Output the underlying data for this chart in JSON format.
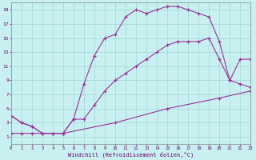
{
  "xlabel": "Windchill (Refroidissement éolien,°C)",
  "bg_color": "#c8f0f0",
  "grid_color": "#a8dada",
  "line_color": "#993399",
  "xlim": [
    0,
    23
  ],
  "ylim": [
    0,
    20
  ],
  "xticks": [
    0,
    1,
    2,
    3,
    4,
    5,
    6,
    7,
    8,
    9,
    10,
    11,
    12,
    13,
    14,
    15,
    16,
    17,
    18,
    19,
    20,
    21,
    22,
    23
  ],
  "yticks": [
    1,
    3,
    5,
    7,
    9,
    11,
    13,
    15,
    17,
    19
  ],
  "line1_x": [
    0,
    1,
    2,
    3,
    4,
    5,
    6,
    7,
    8,
    9,
    10,
    11,
    12,
    13,
    14,
    15,
    16,
    17,
    18,
    19,
    20,
    21,
    22,
    23
  ],
  "line1_y": [
    4.0,
    3.0,
    2.5,
    1.5,
    1.5,
    1.5,
    3.5,
    8.5,
    12.5,
    15.0,
    15.5,
    18.0,
    19.0,
    18.5,
    19.0,
    19.5,
    19.5,
    19.0,
    18.5,
    18.0,
    14.5,
    9.0,
    8.5,
    8.0
  ],
  "line2_x": [
    0,
    1,
    2,
    3,
    4,
    5,
    6,
    7,
    8,
    9,
    10,
    11,
    12,
    13,
    14,
    15,
    16,
    17,
    18,
    19,
    20,
    21,
    22,
    23
  ],
  "line2_y": [
    4.0,
    3.0,
    2.5,
    1.5,
    1.5,
    1.5,
    3.5,
    3.5,
    5.5,
    7.5,
    9.0,
    10.0,
    11.0,
    12.0,
    13.0,
    14.0,
    14.5,
    14.5,
    14.5,
    15.0,
    12.0,
    9.0,
    12.0,
    12.0
  ],
  "line3_x": [
    0,
    1,
    2,
    5,
    10,
    15,
    20,
    23
  ],
  "line3_y": [
    1.5,
    1.5,
    1.5,
    1.5,
    3.0,
    5.0,
    6.5,
    7.5
  ]
}
